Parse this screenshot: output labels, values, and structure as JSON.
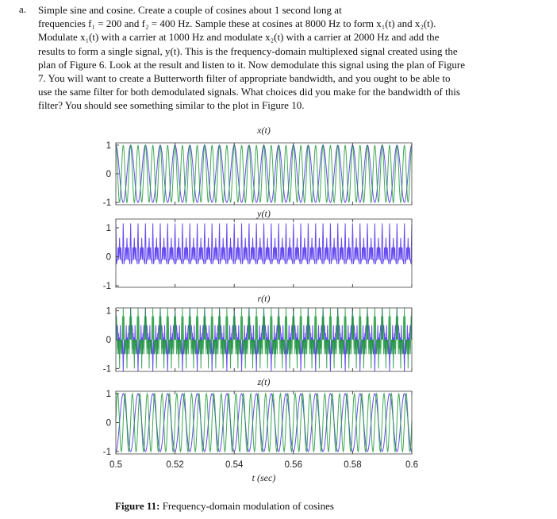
{
  "problem": {
    "marker": "a.",
    "lines": [
      "Simple sine and cosine. Create a couple of cosines about 1 second long at",
      "frequencies f₁ = 200 and f₂ = 400 Hz. Sample these at cosines at 8000 Hz to form x₁(t) and x₂(t).",
      "Modulate x₁(t) with a carrier at 1000 Hz and modulate x₂(t)  with a carrier at 2000 Hz and add the",
      "results to form a single signal, y(t). This is the frequency-domain multiplexed signal created using the",
      "plan of Figure 6. Look at the result and listen to it. Now demodulate this signal using the plan of Figure",
      "7. You will want to create a Butterworth filter of appropriate bandwidth, and you ought to be able to",
      "use the same filter for both demodulated signals. What choices did you make for the bandwidth of this",
      "filter? You should see something similar to the plot in Figure 10."
    ]
  },
  "chart_data": {
    "type": "line",
    "sample_rate_hz": 8000,
    "signal_frequencies_hz": [
      200,
      400
    ],
    "carrier_frequencies_hz": [
      1000,
      2000
    ],
    "xlim": [
      0.5,
      0.6
    ],
    "x_ticks": [
      "0.5",
      "0.52",
      "0.54",
      "0.56",
      "0.58",
      "0.6"
    ],
    "xlabel": "t (sec)",
    "colors": {
      "series1": "#4b2cf0",
      "series2": "#1e9a3a"
    },
    "panels": [
      {
        "title": "x(t)",
        "y_ticks": [
          "1",
          "0",
          "-1"
        ],
        "ylim": [
          -1.08,
          1.08
        ]
      },
      {
        "title": "y(t)",
        "y_ticks": [
          "1",
          "0",
          "-1"
        ],
        "ylim": [
          -1.05,
          1.3
        ]
      },
      {
        "title": "r(t)",
        "y_ticks": [
          "1",
          "0",
          "-1"
        ],
        "ylim": [
          -1.1,
          1.1
        ]
      },
      {
        "title": "z(t)",
        "y_ticks": [
          "1",
          "0",
          "-1"
        ],
        "ylim": [
          -1.08,
          1.08
        ]
      }
    ]
  },
  "caption": {
    "label": "Figure 11:",
    "text": " Frequency-domain modulation of cosines"
  }
}
